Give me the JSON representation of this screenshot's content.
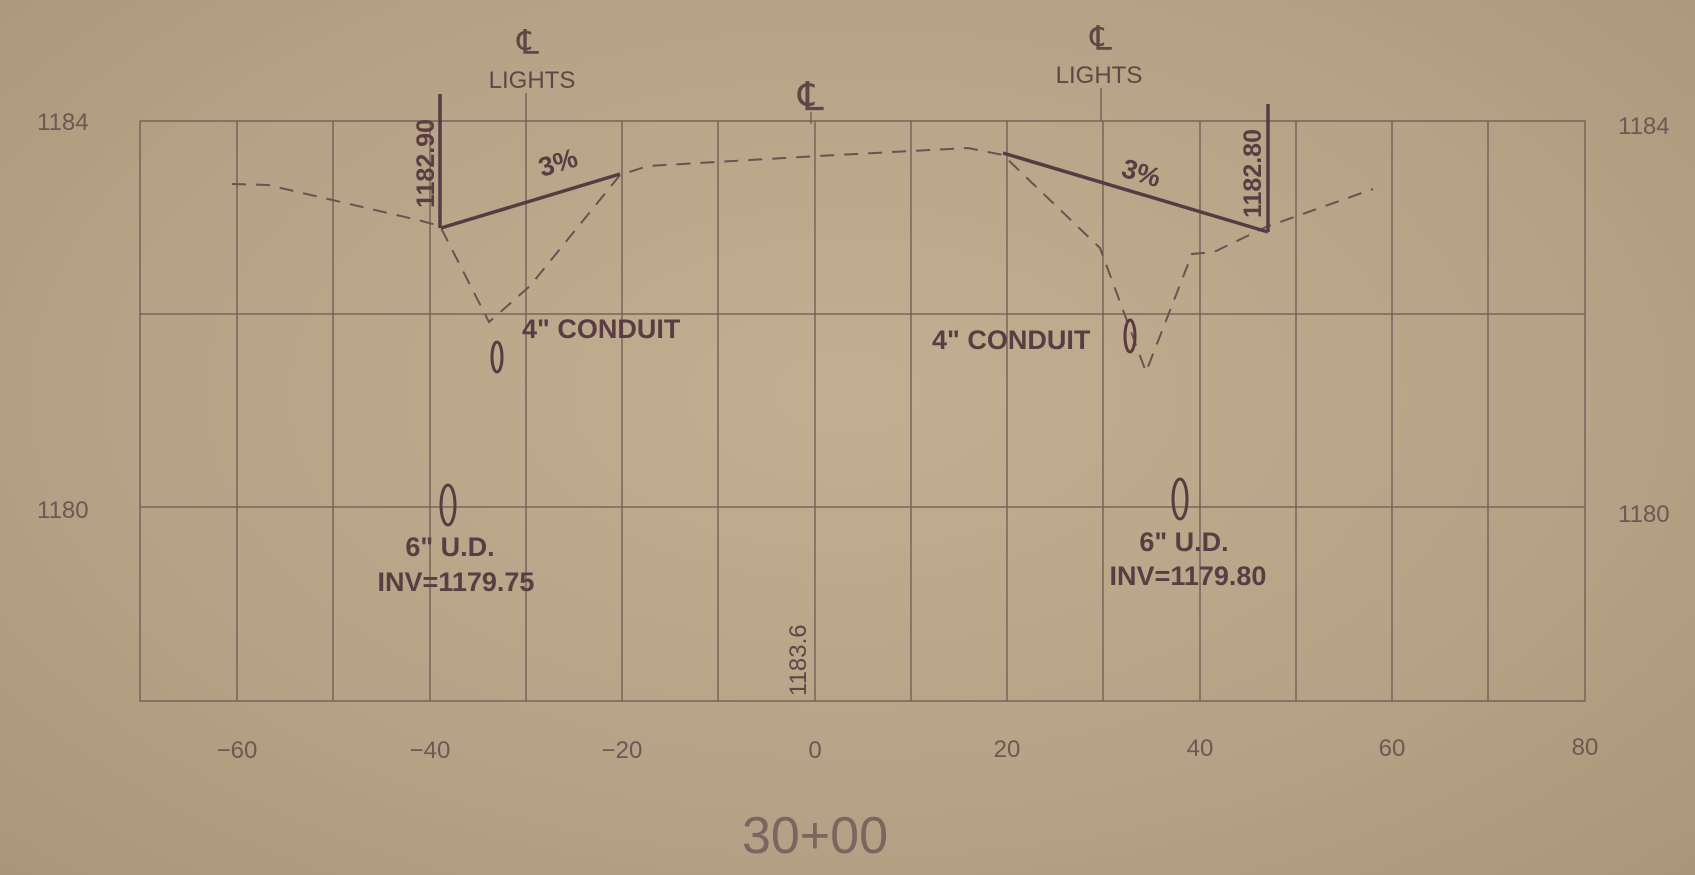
{
  "elevation_axis": {
    "left_labels": [
      "1184",
      "1180"
    ],
    "right_labels": [
      "1184",
      "1180"
    ]
  },
  "offset_axis": {
    "ticks": [
      "−60",
      "−40",
      "−20",
      "0",
      "20",
      "40",
      "60",
      "80"
    ]
  },
  "centerline": {
    "symbol": "℄"
  },
  "lights_left": {
    "symbol": "℄",
    "label": "LIGHTS"
  },
  "lights_right": {
    "symbol": "℄",
    "label": "LIGHTS"
  },
  "edge_left": {
    "elevation": "1182.90",
    "slope": "3%"
  },
  "edge_right": {
    "elevation": "1182.80",
    "slope": "3%"
  },
  "conduit_left": {
    "label": "4\" CONDUIT"
  },
  "conduit_right": {
    "label": "4\" CONDUIT"
  },
  "underdrain_left": {
    "size": "6\" U.D.",
    "invert": "INV=1179.75"
  },
  "underdrain_right": {
    "size": "6\" U.D.",
    "invert": "INV=1179.80"
  },
  "centerline_elevation": "1183.6",
  "station": "30+00"
}
